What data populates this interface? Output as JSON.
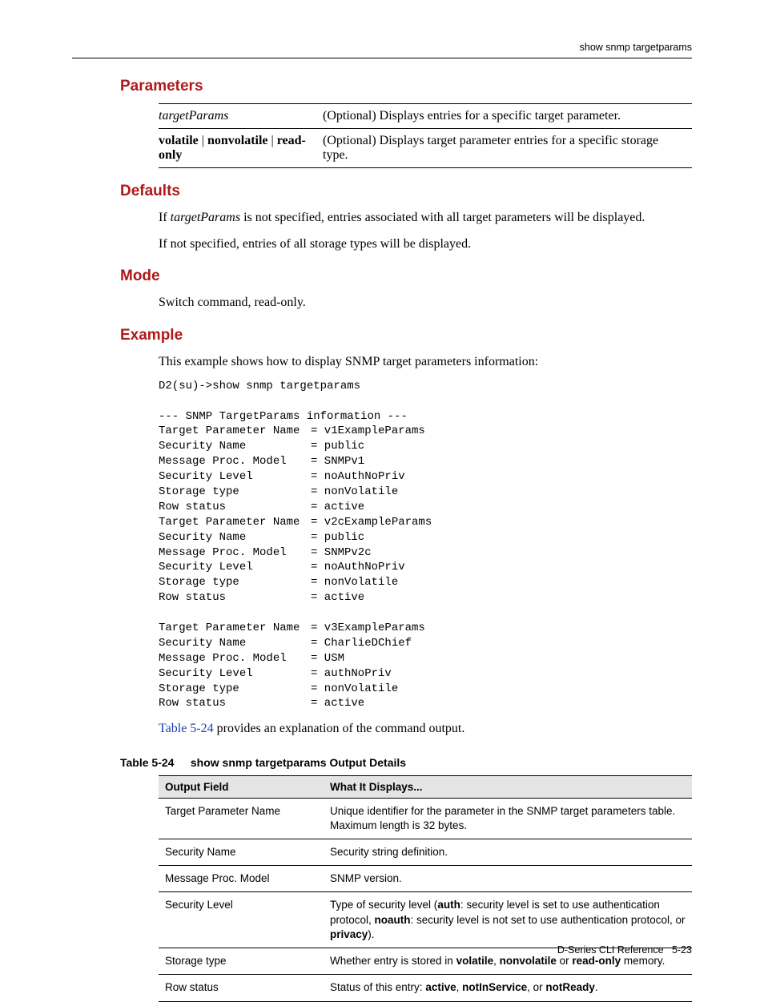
{
  "header": {
    "running_head": "show snmp targetparams"
  },
  "sections": {
    "parameters": "Parameters",
    "defaults": "Defaults",
    "mode": "Mode",
    "example": "Example"
  },
  "params_table": {
    "rows": [
      {
        "name_html": "<span class=\"italic\">targetParams</span>",
        "desc": "(Optional) Displays entries for a specific target parameter."
      },
      {
        "name_html": "<span class=\"bold\">volatile</span> | <span class=\"bold\">nonvolatile</span> | <span class=\"bold\">read-only</span>",
        "desc": "(Optional) Displays target parameter entries for a specific storage type."
      }
    ]
  },
  "defaults": {
    "p1_html": "If <span class=\"italic\">targetParams</span> is not specified, entries associated with all target parameters will be displayed.",
    "p2": "If not specified, entries of all storage types will be displayed."
  },
  "mode": {
    "text": "Switch command, read-only."
  },
  "example": {
    "intro": "This example shows how to display SNMP target parameters information:",
    "cmd": "D2(su)->show snmp targetparams",
    "banner": "--- SNMP TargetParams information ---",
    "groups": [
      [
        {
          "k": "Target Parameter Name",
          "v": "v1ExampleParams"
        },
        {
          "k": "Security Name",
          "v": "public"
        },
        {
          "k": "Message Proc. Model",
          "v": "SNMPv1"
        },
        {
          "k": "Security Level",
          "v": "noAuthNoPriv"
        },
        {
          "k": "Storage type",
          "v": "nonVolatile"
        },
        {
          "k": "Row status",
          "v": "active"
        }
      ],
      [
        {
          "k": "Target Parameter Name",
          "v": "v2cExampleParams"
        },
        {
          "k": "Security Name",
          "v": "public"
        },
        {
          "k": "Message Proc. Model",
          "v": "SNMPv2c"
        },
        {
          "k": "Security Level",
          "v": "noAuthNoPriv"
        },
        {
          "k": "Storage type",
          "v": "nonVolatile"
        },
        {
          "k": "Row status",
          "v": "active"
        }
      ],
      [
        {
          "k": "Target Parameter Name",
          "v": "v3ExampleParams"
        },
        {
          "k": "Security Name",
          "v": "CharlieDChief"
        },
        {
          "k": "Message Proc. Model",
          "v": "USM"
        },
        {
          "k": "Security Level",
          "v": "authNoPriv"
        },
        {
          "k": "Storage type",
          "v": "nonVolatile"
        },
        {
          "k": "Row status",
          "v": "active"
        }
      ]
    ],
    "after_html": "<span class=\"link\">Table 5-24</span> provides an explanation of the command output."
  },
  "output_table": {
    "caption_num": "Table 5-24",
    "caption_title": "show snmp targetparams Output Details",
    "columns": [
      "Output Field",
      "What It Displays..."
    ],
    "rows": [
      {
        "field": "Target Parameter Name",
        "desc_html": "Unique identifier for the parameter in the SNMP target parameters table. Maximum length is 32 bytes."
      },
      {
        "field": "Security Name",
        "desc_html": "Security string definition."
      },
      {
        "field": "Message Proc. Model",
        "desc_html": "SNMP version."
      },
      {
        "field": "Security Level",
        "desc_html": "Type of security level (<span class=\"bold\">auth</span>: security level is set to use authentication protocol, <span class=\"bold\">noauth</span>: security level is not set to use authentication protocol, or <span class=\"bold\">privacy</span>)."
      },
      {
        "field": "Storage type",
        "desc_html": "Whether entry is stored in <span class=\"bold\">volatile</span>, <span class=\"bold\">nonvolatile</span> or <span class=\"bold\">read-only</span> memory."
      },
      {
        "field": "Row status",
        "desc_html": "Status of this entry: <span class=\"bold\">active</span>, <span class=\"bold\">notInService</span>, or <span class=\"bold\">notReady</span>."
      }
    ]
  },
  "footer": {
    "doc": "D-Series CLI Reference",
    "page": "5-23"
  },
  "colors": {
    "heading": "#b01818",
    "link": "#1a3fb5",
    "table_header_bg": "#e4e4e4",
    "text": "#000000"
  }
}
